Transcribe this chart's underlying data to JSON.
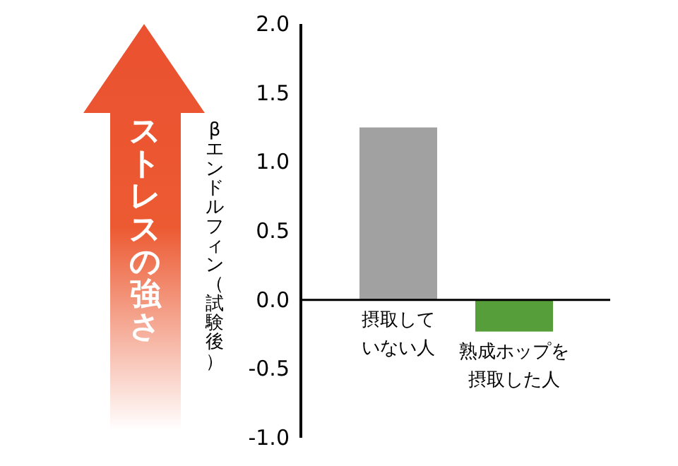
{
  "chart_data": {
    "type": "bar",
    "categories": [
      "摂取していない人",
      "熟成ホップを摂取した人"
    ],
    "values": [
      1.25,
      -0.23
    ],
    "colors": [
      "#a0a1a0",
      "#559e3a"
    ],
    "ylabel": "βエンドルフィン（試験後）",
    "ylim": [
      -1,
      2
    ],
    "yticks": [
      {
        "value": -1,
        "label": "-1.0"
      },
      {
        "value": -0.5,
        "label": "-0.5"
      },
      {
        "value": 0,
        "label": "0.0"
      },
      {
        "value": 0.5,
        "label": "0.5"
      },
      {
        "value": 1,
        "label": "1.0"
      },
      {
        "value": 1.5,
        "label": "1.5"
      },
      {
        "value": 2,
        "label": "2.0"
      }
    ],
    "annotations": [
      "ストレスの強さ"
    ]
  }
}
